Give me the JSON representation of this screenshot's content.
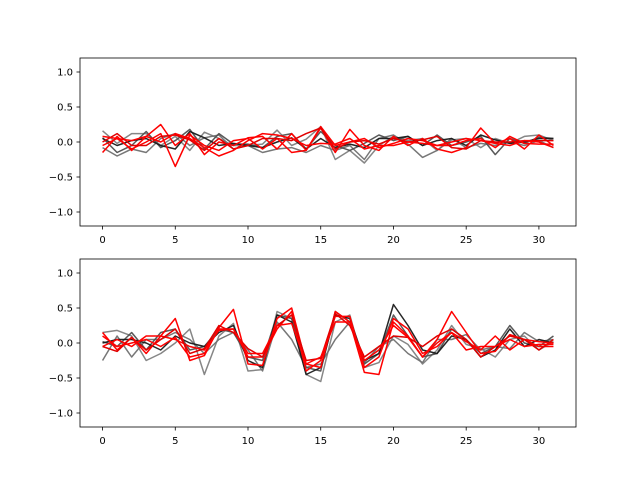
{
  "chart_data": [
    {
      "type": "line",
      "title": "",
      "xlabel": "",
      "ylabel": "",
      "xlim": [
        -1.55,
        32.55
      ],
      "ylim": [
        -1.2,
        1.2
      ],
      "xticks": [
        0,
        5,
        10,
        15,
        20,
        25,
        30
      ],
      "yticks": [
        -1.0,
        -0.5,
        0.0,
        0.5,
        1.0
      ],
      "grid": false,
      "series": [
        {
          "color": "#808080",
          "values": [
            0.16,
            -0.02,
            0.12,
            0.12,
            -0.05,
            0.08,
            -0.12,
            0.14,
            0.05,
            -0.05,
            -0.05,
            -0.03,
            0.17,
            -0.05,
            0.04,
            0.22,
            -0.25,
            -0.12,
            -0.3,
            -0.05,
            0.08,
            0.02,
            0.05,
            -0.12,
            0.03,
            0.05,
            -0.08,
            0.05,
            -0.02,
            0.08,
            0.1,
            0.02
          ]
        },
        {
          "color": "#707070",
          "values": [
            -0.08,
            -0.2,
            -0.1,
            -0.15,
            0.05,
            0.12,
            -0.05,
            0.06,
            0.1,
            -0.1,
            -0.05,
            -0.15,
            -0.1,
            -0.08,
            -0.15,
            -0.05,
            -0.12,
            -0.05,
            -0.25,
            0.05,
            0.1,
            -0.03,
            -0.22,
            -0.12,
            0.05,
            -0.08,
            -0.02,
            -0.05,
            0.0,
            -0.05,
            0.02,
            -0.08
          ]
        },
        {
          "color": "#505050",
          "values": [
            0.06,
            -0.15,
            -0.05,
            0.15,
            -0.08,
            0.02,
            0.18,
            -0.1,
            0.12,
            -0.03,
            -0.03,
            -0.08,
            0.08,
            0.12,
            -0.1,
            0.15,
            -0.05,
            -0.12,
            -0.02,
            0.1,
            0.02,
            0.08,
            -0.05,
            0.1,
            -0.05,
            0.0,
            0.08,
            -0.18,
            0.05,
            -0.02,
            0.07,
            0.05
          ]
        },
        {
          "color": "#1a1a1a",
          "values": [
            0.05,
            -0.05,
            0.02,
            0.05,
            -0.05,
            -0.1,
            0.15,
            0.06,
            -0.05,
            -0.02,
            -0.05,
            -0.08,
            0.0,
            0.06,
            -0.1,
            0.05,
            -0.08,
            -0.03,
            -0.08,
            0.05,
            0.05,
            0.08,
            -0.05,
            0.02,
            0.05,
            -0.05,
            0.1,
            0.03,
            -0.02,
            0.0,
            0.05,
            0.05
          ]
        },
        {
          "color": "#ff0000",
          "values": [
            -0.15,
            0.08,
            -0.12,
            0.08,
            0.25,
            -0.05,
            0.12,
            -0.18,
            0.0,
            -0.05,
            0.06,
            0.08,
            -0.1,
            0.12,
            -0.12,
            0.2,
            -0.15,
            0.18,
            -0.05,
            -0.12,
            0.08,
            -0.05,
            0.05,
            -0.1,
            -0.15,
            -0.08,
            0.2,
            -0.02,
            0.05,
            -0.1,
            0.1,
            -0.05
          ]
        },
        {
          "color": "#ff0000",
          "values": [
            -0.05,
            0.05,
            -0.1,
            0.0,
            0.12,
            -0.35,
            0.1,
            -0.05,
            -0.12,
            0.02,
            0.05,
            -0.1,
            0.05,
            -0.15,
            -0.12,
            0.22,
            -0.05,
            0.0,
            0.05,
            -0.08,
            -0.02,
            0.05,
            0.02,
            -0.05,
            -0.05,
            0.02,
            0.05,
            -0.08,
            0.08,
            -0.02,
            -0.03,
            -0.03
          ]
        },
        {
          "color": "#e00000",
          "values": [
            0.0,
            0.12,
            -0.05,
            -0.05,
            0.08,
            0.1,
            0.03,
            -0.12,
            0.05,
            -0.1,
            -0.05,
            0.05,
            0.05,
            0.02,
            0.12,
            0.2,
            -0.1,
            0.0,
            0.02,
            -0.03,
            0.05,
            0.0,
            0.03,
            0.08,
            -0.08,
            -0.1,
            0.02,
            0.0,
            0.0,
            0.02,
            0.02,
            0.02
          ]
        },
        {
          "color": "#ff0000",
          "values": [
            0.08,
            0.05,
            0.02,
            0.08,
            0.0,
            0.12,
            0.05,
            -0.08,
            -0.2,
            -0.12,
            0.02,
            0.12,
            0.1,
            0.05,
            -0.05,
            -0.02,
            -0.03,
            0.05,
            -0.1,
            -0.05,
            -0.05,
            0.0,
            -0.02,
            -0.05,
            0.0,
            0.05,
            0.02,
            -0.02,
            -0.05,
            0.02,
            0.0,
            -0.08
          ]
        }
      ]
    },
    {
      "type": "line",
      "title": "",
      "xlabel": "",
      "ylabel": "",
      "xlim": [
        -1.55,
        32.55
      ],
      "ylim": [
        -1.2,
        1.2
      ],
      "xticks": [
        0,
        5,
        10,
        15,
        20,
        25,
        30
      ],
      "yticks": [
        -1.0,
        -0.5,
        0.0,
        0.5,
        1.0
      ],
      "grid": false,
      "series": [
        {
          "color": "#808080",
          "values": [
            0.15,
            0.18,
            0.1,
            -0.25,
            -0.15,
            0.0,
            0.2,
            -0.45,
            0.1,
            0.28,
            -0.4,
            -0.38,
            0.45,
            0.35,
            -0.45,
            -0.55,
            0.3,
            0.4,
            -0.35,
            -0.28,
            0.1,
            -0.02,
            -0.3,
            -0.1,
            0.25,
            -0.02,
            -0.08,
            -0.2,
            0.05,
            0.1,
            -0.1,
            0.02
          ]
        },
        {
          "color": "#707070",
          "values": [
            -0.25,
            0.1,
            -0.2,
            0.05,
            0.05,
            0.15,
            0.05,
            -0.15,
            0.05,
            0.15,
            -0.1,
            -0.4,
            0.3,
            0.05,
            -0.35,
            -0.3,
            0.05,
            0.3,
            -0.28,
            -0.05,
            0.05,
            -0.15,
            -0.28,
            0.05,
            0.05,
            0.12,
            -0.1,
            -0.05,
            -0.08,
            0.15,
            0.02,
            0.05
          ]
        },
        {
          "color": "#505050",
          "values": [
            0.02,
            -0.05,
            0.15,
            -0.1,
            0.15,
            0.2,
            -0.1,
            -0.05,
            0.2,
            0.15,
            -0.2,
            -0.25,
            0.4,
            0.35,
            -0.35,
            -0.4,
            0.45,
            0.3,
            -0.3,
            -0.15,
            0.4,
            0.1,
            -0.2,
            -0.15,
            0.2,
            0.05,
            -0.15,
            -0.05,
            0.25,
            0.0,
            -0.05,
            0.1
          ]
        },
        {
          "color": "#1a1a1a",
          "values": [
            0.0,
            0.05,
            0.05,
            0.0,
            -0.1,
            0.1,
            0.0,
            -0.05,
            0.15,
            0.25,
            -0.25,
            -0.35,
            0.4,
            0.3,
            -0.45,
            -0.35,
            0.4,
            0.35,
            -0.25,
            -0.15,
            0.55,
            0.25,
            -0.1,
            -0.15,
            0.1,
            0.05,
            -0.2,
            -0.1,
            0.2,
            -0.05,
            0.05,
            0.0
          ]
        },
        {
          "color": "#ff0000",
          "values": [
            0.15,
            -0.1,
            0.08,
            -0.15,
            0.1,
            0.35,
            -0.25,
            -0.18,
            0.22,
            0.48,
            -0.3,
            -0.32,
            0.35,
            0.5,
            -0.3,
            -0.35,
            0.45,
            0.3,
            -0.42,
            -0.45,
            0.3,
            0.1,
            -0.2,
            0.05,
            0.45,
            0.15,
            -0.15,
            -0.12,
            0.12,
            0.05,
            -0.05,
            -0.05
          ]
        },
        {
          "color": "#ff0000",
          "values": [
            -0.05,
            0.05,
            -0.05,
            0.1,
            0.1,
            0.05,
            -0.05,
            -0.1,
            0.18,
            0.2,
            -0.2,
            -0.2,
            0.2,
            0.45,
            -0.4,
            -0.25,
            0.38,
            0.38,
            -0.35,
            -0.2,
            0.35,
            0.2,
            -0.15,
            -0.05,
            0.15,
            0.02,
            -0.1,
            0.1,
            -0.1,
            0.05,
            0.02,
            0.0
          ]
        },
        {
          "color": "#e00000",
          "values": [
            -0.05,
            -0.12,
            0.08,
            -0.1,
            0.05,
            0.2,
            -0.15,
            -0.08,
            0.25,
            0.15,
            -0.08,
            -0.2,
            0.25,
            0.4,
            -0.25,
            -0.22,
            0.42,
            0.25,
            -0.2,
            -0.05,
            0.1,
            0.08,
            -0.05,
            0.1,
            0.2,
            0.05,
            -0.2,
            -0.05,
            0.1,
            0.05,
            -0.1,
            0.05
          ]
        },
        {
          "color": "#ff0000",
          "values": [
            0.1,
            -0.05,
            0.0,
            0.05,
            -0.05,
            0.08,
            -0.2,
            -0.15,
            0.2,
            0.2,
            -0.15,
            -0.15,
            0.25,
            0.28,
            -0.3,
            -0.2,
            0.3,
            0.3,
            -0.25,
            -0.1,
            0.25,
            0.08,
            -0.2,
            0.0,
            0.15,
            -0.1,
            -0.05,
            -0.05,
            0.05,
            -0.05,
            -0.02,
            -0.02
          ]
        }
      ]
    }
  ]
}
